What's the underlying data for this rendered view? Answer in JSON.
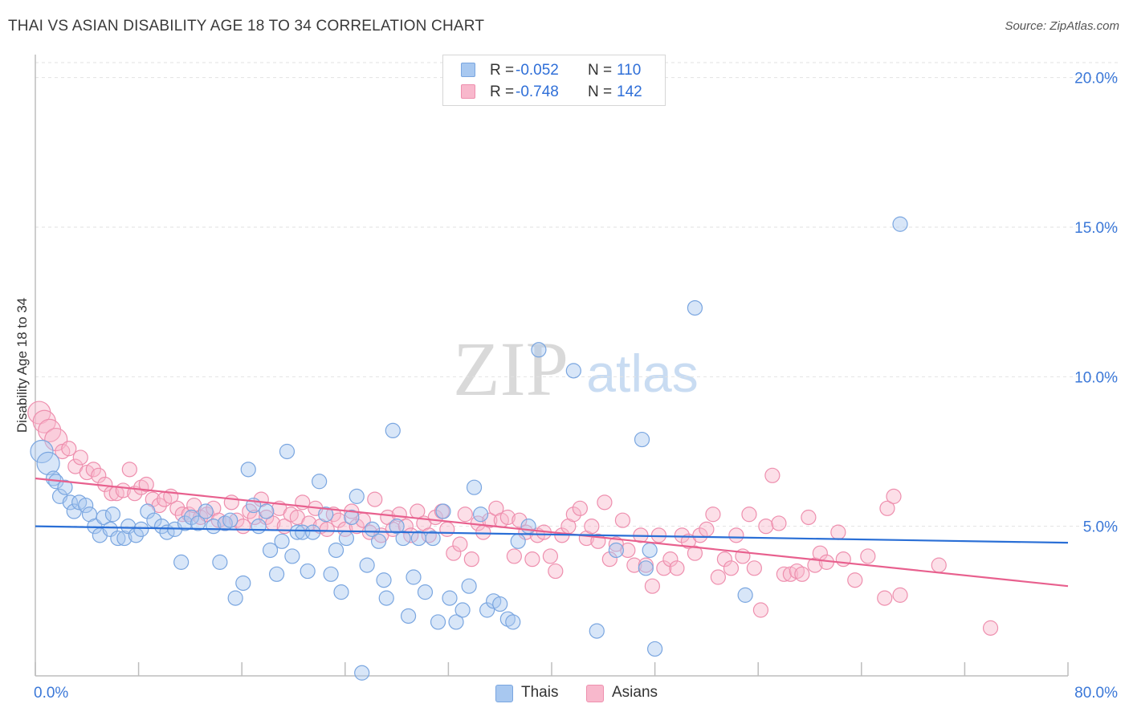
{
  "header": {
    "title": "THAI VS ASIAN DISABILITY AGE 18 TO 34 CORRELATION CHART",
    "source": "Source: ZipAtlas.com"
  },
  "watermark": {
    "zip": "ZIP",
    "atlas": "atlas"
  },
  "legend_top": {
    "rows": [
      {
        "r_label": "R =",
        "r_value": "-0.052",
        "n_label": "N =",
        "n_value": "110"
      },
      {
        "r_label": "R =",
        "r_value": "-0.748",
        "n_label": "N =",
        "n_value": "142"
      }
    ]
  },
  "legend_bottom": {
    "thais": "Thais",
    "asians": "Asians"
  },
  "colors": {
    "thais_fill": "#a8c8f0",
    "thais_stroke": "#7aa6e0",
    "thais_line": "#2a6fd6",
    "asians_fill": "#f8b8cc",
    "asians_stroke": "#ee8fae",
    "asians_line": "#e8608e",
    "tick_label": "#3b78d8",
    "grid": "#e2e2e2"
  },
  "chart_data": {
    "type": "scatter",
    "title": "THAI VS ASIAN DISABILITY AGE 18 TO 34 CORRELATION CHART",
    "xlabel": "",
    "ylabel": "Disability Age 18 to 34",
    "xlim": [
      0,
      80
    ],
    "ylim": [
      0,
      20.5
    ],
    "x_tick_labels": [
      {
        "value": 0,
        "label": "0.0%"
      },
      {
        "value": 80,
        "label": "80.0%"
      }
    ],
    "y_tick_labels": [
      {
        "value": 5,
        "label": "5.0%"
      },
      {
        "value": 10,
        "label": "10.0%"
      },
      {
        "value": 15,
        "label": "15.0%"
      },
      {
        "value": 20,
        "label": "20.0%"
      }
    ],
    "grid": "horizontal dashed",
    "legend_position": "top-center",
    "series": [
      {
        "name": "Thais",
        "R": -0.052,
        "N": 110,
        "trend": {
          "x": [
            0,
            80
          ],
          "y": [
            5.0,
            4.45
          ]
        },
        "points": [
          [
            0.5,
            7.5
          ],
          [
            1.0,
            7.1
          ],
          [
            1.4,
            6.6
          ],
          [
            1.6,
            6.5
          ],
          [
            1.9,
            6.0
          ],
          [
            2.3,
            6.3
          ],
          [
            2.7,
            5.8
          ],
          [
            3.0,
            5.5
          ],
          [
            3.4,
            5.8
          ],
          [
            3.9,
            5.7
          ],
          [
            4.2,
            5.4
          ],
          [
            4.6,
            5.0
          ],
          [
            5.0,
            4.7
          ],
          [
            5.3,
            5.3
          ],
          [
            5.8,
            4.9
          ],
          [
            6.0,
            5.4
          ],
          [
            6.4,
            4.6
          ],
          [
            6.9,
            4.6
          ],
          [
            7.2,
            5.0
          ],
          [
            7.8,
            4.7
          ],
          [
            8.2,
            4.9
          ],
          [
            8.7,
            5.5
          ],
          [
            9.2,
            5.2
          ],
          [
            9.8,
            5.0
          ],
          [
            10.2,
            4.8
          ],
          [
            10.8,
            4.9
          ],
          [
            11.3,
            3.8
          ],
          [
            11.6,
            5.1
          ],
          [
            12.1,
            5.3
          ],
          [
            12.6,
            5.1
          ],
          [
            13.2,
            5.5
          ],
          [
            13.8,
            5.0
          ],
          [
            14.3,
            3.8
          ],
          [
            14.7,
            5.1
          ],
          [
            15.1,
            5.2
          ],
          [
            15.5,
            2.6
          ],
          [
            16.1,
            3.1
          ],
          [
            16.5,
            6.9
          ],
          [
            16.9,
            5.7
          ],
          [
            17.3,
            5.0
          ],
          [
            17.9,
            5.5
          ],
          [
            18.2,
            4.2
          ],
          [
            18.7,
            3.4
          ],
          [
            19.1,
            4.5
          ],
          [
            19.5,
            7.5
          ],
          [
            19.9,
            4.0
          ],
          [
            20.3,
            4.8
          ],
          [
            20.7,
            4.8
          ],
          [
            21.1,
            3.5
          ],
          [
            21.5,
            4.8
          ],
          [
            22.0,
            6.5
          ],
          [
            22.5,
            5.4
          ],
          [
            22.9,
            3.4
          ],
          [
            23.3,
            4.2
          ],
          [
            23.7,
            2.8
          ],
          [
            24.1,
            4.6
          ],
          [
            24.5,
            5.3
          ],
          [
            24.9,
            6.0
          ],
          [
            25.3,
            0.1
          ],
          [
            25.7,
            3.7
          ],
          [
            26.1,
            4.9
          ],
          [
            26.6,
            4.5
          ],
          [
            27.0,
            3.2
          ],
          [
            27.2,
            2.6
          ],
          [
            27.7,
            8.2
          ],
          [
            28.0,
            5.0
          ],
          [
            28.5,
            4.6
          ],
          [
            28.9,
            2.0
          ],
          [
            29.3,
            3.3
          ],
          [
            29.7,
            4.6
          ],
          [
            30.2,
            2.8
          ],
          [
            30.8,
            4.6
          ],
          [
            31.2,
            1.8
          ],
          [
            31.6,
            5.5
          ],
          [
            32.1,
            2.6
          ],
          [
            32.6,
            1.8
          ],
          [
            33.1,
            2.2
          ],
          [
            33.6,
            3.0
          ],
          [
            34.0,
            6.3
          ],
          [
            34.5,
            5.4
          ],
          [
            35.0,
            2.2
          ],
          [
            35.5,
            2.5
          ],
          [
            36.0,
            2.4
          ],
          [
            36.6,
            1.9
          ],
          [
            37.0,
            1.8
          ],
          [
            37.4,
            4.5
          ],
          [
            38.2,
            5.0
          ],
          [
            39.0,
            10.9
          ],
          [
            41.7,
            10.2
          ],
          [
            43.5,
            1.5
          ],
          [
            45.0,
            4.2
          ],
          [
            47.0,
            7.9
          ],
          [
            47.3,
            3.6
          ],
          [
            47.6,
            4.2
          ],
          [
            48.0,
            0.9
          ],
          [
            51.1,
            12.3
          ],
          [
            55.0,
            2.7
          ],
          [
            67.0,
            15.1
          ]
        ]
      },
      {
        "name": "Asians",
        "R": -0.748,
        "N": 142,
        "trend": {
          "x": [
            0,
            80
          ],
          "y": [
            6.6,
            3.0
          ]
        },
        "points": [
          [
            0.3,
            8.8
          ],
          [
            0.7,
            8.5
          ],
          [
            1.1,
            8.2
          ],
          [
            1.6,
            7.9
          ],
          [
            2.1,
            7.5
          ],
          [
            2.6,
            7.6
          ],
          [
            3.1,
            7.0
          ],
          [
            3.5,
            7.3
          ],
          [
            4.0,
            6.8
          ],
          [
            4.5,
            6.9
          ],
          [
            4.9,
            6.7
          ],
          [
            5.4,
            6.4
          ],
          [
            5.9,
            6.1
          ],
          [
            6.3,
            6.1
          ],
          [
            6.8,
            6.2
          ],
          [
            7.3,
            6.9
          ],
          [
            7.7,
            6.1
          ],
          [
            8.2,
            6.3
          ],
          [
            8.6,
            6.4
          ],
          [
            9.1,
            5.9
          ],
          [
            9.6,
            5.7
          ],
          [
            10.0,
            5.9
          ],
          [
            10.5,
            6.0
          ],
          [
            11.0,
            5.6
          ],
          [
            11.4,
            5.4
          ],
          [
            11.9,
            5.4
          ],
          [
            12.3,
            5.7
          ],
          [
            12.8,
            5.3
          ],
          [
            13.3,
            5.4
          ],
          [
            13.8,
            5.6
          ],
          [
            14.2,
            5.2
          ],
          [
            14.7,
            5.1
          ],
          [
            15.2,
            5.8
          ],
          [
            15.6,
            5.2
          ],
          [
            16.1,
            5.0
          ],
          [
            16.6,
            5.5
          ],
          [
            17.0,
            5.3
          ],
          [
            17.5,
            5.9
          ],
          [
            17.9,
            5.3
          ],
          [
            18.4,
            5.1
          ],
          [
            18.9,
            5.6
          ],
          [
            19.3,
            5.0
          ],
          [
            19.8,
            5.4
          ],
          [
            20.3,
            5.3
          ],
          [
            20.7,
            5.8
          ],
          [
            21.2,
            5.1
          ],
          [
            21.7,
            5.6
          ],
          [
            22.1,
            5.0
          ],
          [
            22.6,
            4.9
          ],
          [
            23.1,
            5.4
          ],
          [
            23.5,
            5.2
          ],
          [
            24.0,
            4.9
          ],
          [
            24.5,
            5.5
          ],
          [
            24.9,
            5.0
          ],
          [
            25.4,
            5.2
          ],
          [
            25.9,
            4.8
          ],
          [
            26.3,
            5.9
          ],
          [
            26.8,
            4.7
          ],
          [
            27.3,
            5.3
          ],
          [
            27.7,
            4.9
          ],
          [
            28.2,
            5.4
          ],
          [
            28.7,
            5.0
          ],
          [
            29.1,
            4.7
          ],
          [
            29.6,
            5.5
          ],
          [
            30.1,
            5.1
          ],
          [
            30.5,
            4.7
          ],
          [
            31.0,
            5.3
          ],
          [
            31.5,
            5.5
          ],
          [
            31.9,
            4.9
          ],
          [
            32.4,
            4.1
          ],
          [
            32.9,
            4.4
          ],
          [
            33.3,
            5.4
          ],
          [
            33.8,
            3.9
          ],
          [
            34.3,
            5.1
          ],
          [
            34.7,
            4.8
          ],
          [
            35.2,
            5.2
          ],
          [
            35.7,
            5.6
          ],
          [
            36.1,
            5.2
          ],
          [
            36.6,
            5.3
          ],
          [
            37.1,
            4.0
          ],
          [
            37.5,
            5.2
          ],
          [
            38.0,
            4.8
          ],
          [
            38.5,
            3.9
          ],
          [
            38.9,
            4.7
          ],
          [
            39.4,
            4.8
          ],
          [
            39.9,
            4.0
          ],
          [
            40.3,
            3.5
          ],
          [
            40.8,
            4.7
          ],
          [
            41.3,
            5.0
          ],
          [
            41.7,
            5.4
          ],
          [
            42.2,
            5.6
          ],
          [
            42.7,
            4.6
          ],
          [
            43.1,
            5.0
          ],
          [
            43.6,
            4.5
          ],
          [
            44.1,
            5.8
          ],
          [
            44.5,
            3.9
          ],
          [
            45.0,
            4.4
          ],
          [
            45.5,
            5.2
          ],
          [
            45.9,
            4.2
          ],
          [
            46.4,
            3.7
          ],
          [
            46.9,
            4.7
          ],
          [
            47.3,
            3.7
          ],
          [
            47.8,
            3.0
          ],
          [
            48.3,
            4.7
          ],
          [
            48.7,
            3.6
          ],
          [
            49.2,
            3.9
          ],
          [
            49.7,
            3.6
          ],
          [
            50.1,
            4.7
          ],
          [
            50.6,
            4.5
          ],
          [
            51.1,
            4.1
          ],
          [
            51.5,
            4.7
          ],
          [
            52.0,
            4.9
          ],
          [
            52.5,
            5.4
          ],
          [
            52.9,
            3.3
          ],
          [
            53.4,
            3.9
          ],
          [
            53.9,
            3.6
          ],
          [
            54.3,
            4.7
          ],
          [
            54.8,
            4.0
          ],
          [
            55.3,
            5.4
          ],
          [
            55.7,
            3.6
          ],
          [
            56.2,
            2.2
          ],
          [
            56.6,
            5.0
          ],
          [
            57.1,
            6.7
          ],
          [
            57.6,
            5.1
          ],
          [
            58.0,
            3.4
          ],
          [
            58.5,
            3.4
          ],
          [
            59.0,
            3.5
          ],
          [
            59.4,
            3.4
          ],
          [
            59.9,
            5.3
          ],
          [
            60.4,
            3.7
          ],
          [
            60.8,
            4.1
          ],
          [
            61.3,
            3.8
          ],
          [
            62.2,
            4.8
          ],
          [
            62.6,
            3.9
          ],
          [
            63.5,
            3.2
          ],
          [
            64.5,
            4.0
          ],
          [
            65.8,
            2.6
          ],
          [
            66.0,
            5.6
          ],
          [
            66.5,
            6.0
          ],
          [
            67.0,
            2.7
          ],
          [
            70.0,
            3.7
          ],
          [
            74.0,
            1.6
          ]
        ]
      }
    ]
  }
}
